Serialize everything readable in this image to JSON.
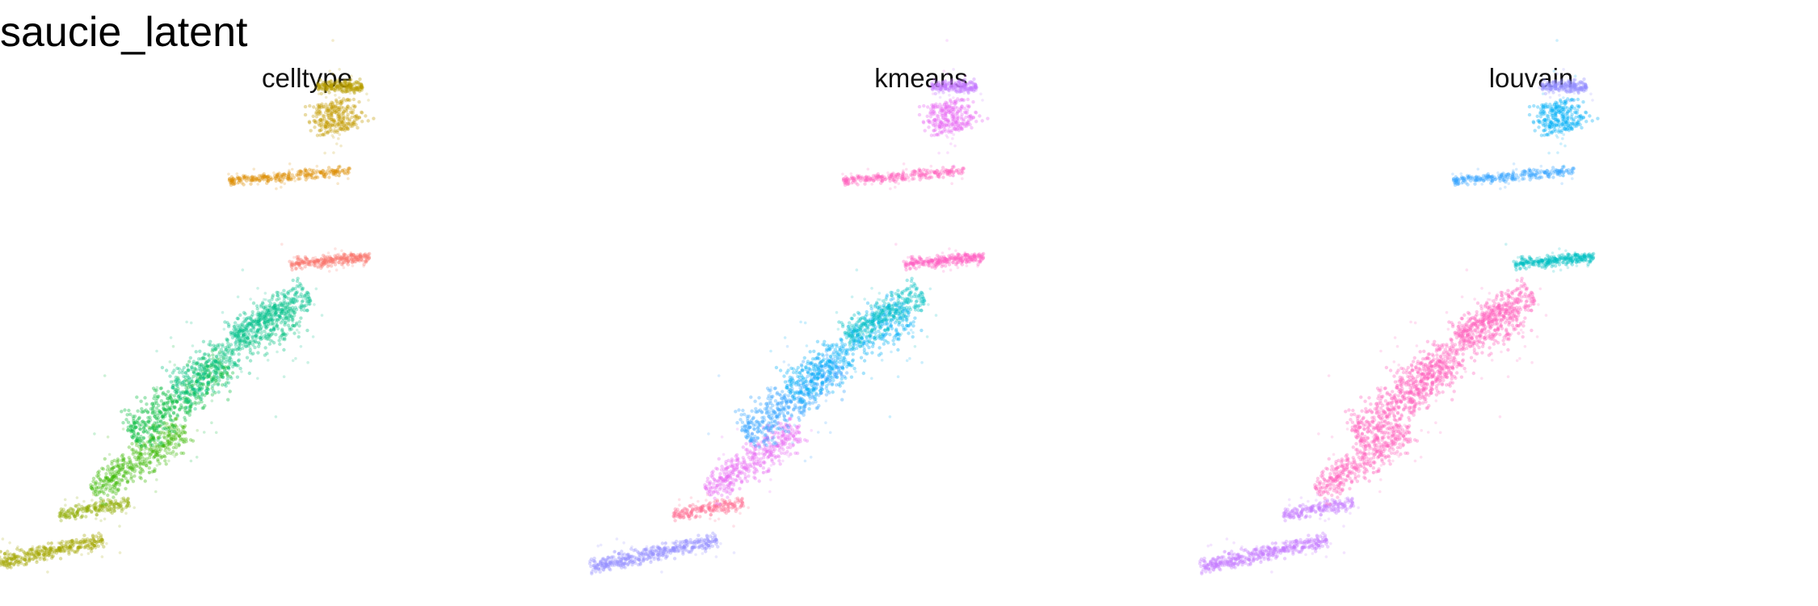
{
  "figure": {
    "title": "saucie_latent"
  },
  "chart_data": {
    "type": "scatter",
    "title": "saucie_latent",
    "xlabel": "",
    "ylabel": "",
    "grid": false,
    "axes_visible": false,
    "legend": "none",
    "xlim": [
      0,
      1
    ],
    "ylim": [
      0,
      1
    ],
    "facets": [
      "celltype",
      "kmeans",
      "louvain"
    ],
    "clusters": [
      {
        "id": "c1",
        "center": [
          0.03,
          0.04
        ],
        "colors": {
          "celltype": "#A3A500",
          "kmeans": "#9590FF",
          "louvain": "#C77CFF"
        }
      },
      {
        "id": "c2",
        "center": [
          0.14,
          0.13
        ],
        "colors": {
          "celltype": "#8EAB00",
          "kmeans": "#FF6C91",
          "louvain": "#C77CFF"
        }
      },
      {
        "id": "c3",
        "center": [
          0.23,
          0.23
        ],
        "colors": {
          "celltype": "#39B600",
          "kmeans": "#E76BF3",
          "louvain": "#FF62BC"
        }
      },
      {
        "id": "c4",
        "center": [
          0.31,
          0.35
        ],
        "colors": {
          "celltype": "#00BA38",
          "kmeans": "#35A2FF",
          "louvain": "#FF62BC"
        }
      },
      {
        "id": "c5",
        "center": [
          0.42,
          0.45
        ],
        "colors": {
          "celltype": "#00BF7D",
          "kmeans": "#00B0F6",
          "louvain": "#FF62BC"
        }
      },
      {
        "id": "c6",
        "center": [
          0.49,
          0.52
        ],
        "colors": {
          "celltype": "#00C08B",
          "kmeans": "#00BFC4",
          "louvain": "#FF62BC"
        }
      },
      {
        "id": "c7",
        "center": [
          0.61,
          0.63
        ],
        "colors": {
          "celltype": "#F8766D",
          "kmeans": "#FF61C3",
          "louvain": "#00BFC4"
        }
      },
      {
        "id": "c8",
        "center": [
          0.53,
          0.8
        ],
        "colors": {
          "celltype": "#DE8C00",
          "kmeans": "#FF62BC",
          "louvain": "#35A2FF"
        }
      },
      {
        "id": "c9",
        "center": [
          0.62,
          0.92
        ],
        "colors": {
          "celltype": "#C49A00",
          "kmeans": "#E76BF3",
          "louvain": "#00B0F6"
        }
      },
      {
        "id": "c10",
        "center": [
          0.63,
          0.98
        ],
        "colors": {
          "celltype": "#B79F00",
          "kmeans": "#C77CFF",
          "louvain": "#9590FF"
        }
      }
    ]
  }
}
